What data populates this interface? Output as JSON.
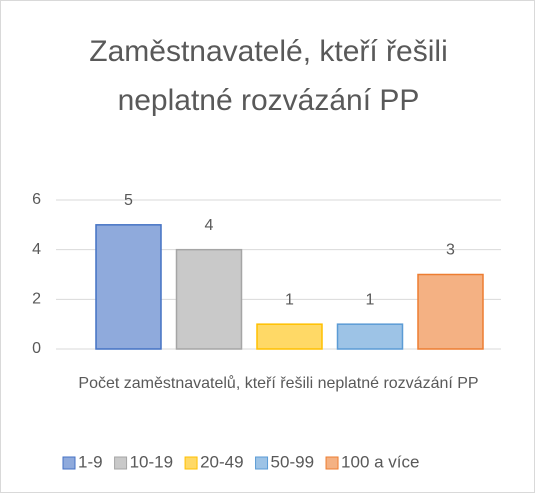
{
  "chart_data": {
    "type": "bar",
    "title": "Zaměstnavatelé, kteří řešili neplatné rozvázání PP",
    "categories": [
      "Počet zaměstnavatelů, kteří řešili neplatné rozvázání PP"
    ],
    "series": [
      {
        "name": "1-9",
        "color": "#8faadc",
        "edge_color": "#4472c4",
        "values": [
          5
        ]
      },
      {
        "name": "10-19",
        "color": "#c9c9c9",
        "edge_color": "#a5a5a5",
        "values": [
          4
        ]
      },
      {
        "name": "20-49",
        "color": "#ffd966",
        "edge_color": "#ffc000",
        "values": [
          1
        ]
      },
      {
        "name": "50-99",
        "color": "#9dc3e6",
        "edge_color": "#5b9bd5",
        "values": [
          1
        ]
      },
      {
        "name": "100 a více",
        "color": "#f4b183",
        "edge_color": "#ed7d31",
        "values": [
          3
        ]
      }
    ],
    "ylim": [
      0,
      6
    ],
    "yticks": [
      0,
      2,
      4,
      6
    ],
    "grid": true,
    "legend": "bottom",
    "data_labels": true
  }
}
